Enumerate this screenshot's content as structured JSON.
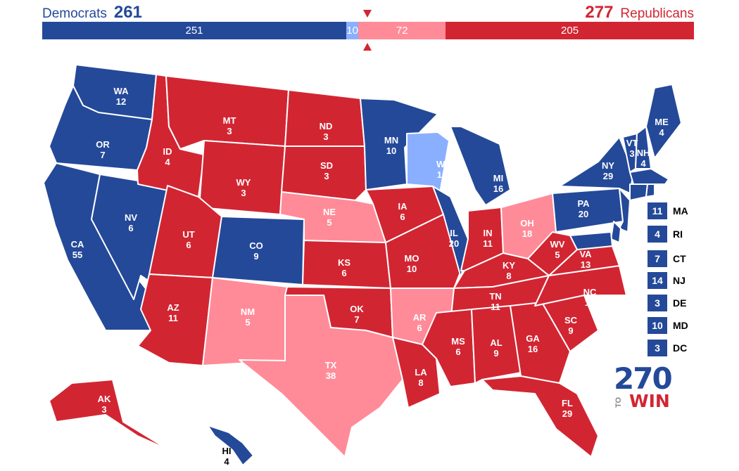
{
  "colors": {
    "safe_d": "#244999",
    "lean_d": "#8aafff",
    "lean_r": "#ff8b98",
    "safe_r": "#d22532"
  },
  "header": {
    "dem_label": "Democrats",
    "dem_total": "261",
    "rep_label": "Republicans",
    "rep_total": "277"
  },
  "bar": {
    "total_votes": 538,
    "segments": [
      {
        "rating": "safe_d",
        "label": "251",
        "votes": 251
      },
      {
        "rating": "lean_d",
        "label": "10",
        "votes": 10
      },
      {
        "rating": "lean_r",
        "label": "72",
        "votes": 72
      },
      {
        "rating": "safe_r",
        "label": "205",
        "votes": 205
      }
    ]
  },
  "states": [
    {
      "abbr": "WA",
      "ev": "12",
      "rating": "safe_d"
    },
    {
      "abbr": "OR",
      "ev": "7",
      "rating": "safe_d"
    },
    {
      "abbr": "CA",
      "ev": "55",
      "rating": "safe_d"
    },
    {
      "abbr": "NV",
      "ev": "6",
      "rating": "safe_d"
    },
    {
      "abbr": "ID",
      "ev": "4",
      "rating": "safe_r"
    },
    {
      "abbr": "MT",
      "ev": "3",
      "rating": "safe_r"
    },
    {
      "abbr": "WY",
      "ev": "3",
      "rating": "safe_r"
    },
    {
      "abbr": "UT",
      "ev": "6",
      "rating": "safe_r"
    },
    {
      "abbr": "AZ",
      "ev": "11",
      "rating": "safe_r"
    },
    {
      "abbr": "CO",
      "ev": "9",
      "rating": "safe_d"
    },
    {
      "abbr": "NM",
      "ev": "5",
      "rating": "lean_r"
    },
    {
      "abbr": "ND",
      "ev": "3",
      "rating": "safe_r"
    },
    {
      "abbr": "SD",
      "ev": "3",
      "rating": "safe_r"
    },
    {
      "abbr": "NE",
      "ev": "5",
      "rating": "lean_r"
    },
    {
      "abbr": "KS",
      "ev": "6",
      "rating": "safe_r"
    },
    {
      "abbr": "OK",
      "ev": "7",
      "rating": "safe_r"
    },
    {
      "abbr": "TX",
      "ev": "38",
      "rating": "lean_r"
    },
    {
      "abbr": "MN",
      "ev": "10",
      "rating": "safe_d"
    },
    {
      "abbr": "IA",
      "ev": "6",
      "rating": "safe_r"
    },
    {
      "abbr": "MO",
      "ev": "10",
      "rating": "safe_r"
    },
    {
      "abbr": "AR",
      "ev": "6",
      "rating": "lean_r"
    },
    {
      "abbr": "LA",
      "ev": "8",
      "rating": "safe_r"
    },
    {
      "abbr": "WI",
      "ev": "10",
      "rating": "lean_d"
    },
    {
      "abbr": "IL",
      "ev": "20",
      "rating": "safe_d"
    },
    {
      "abbr": "MI",
      "ev": "16",
      "rating": "safe_d"
    },
    {
      "abbr": "IN",
      "ev": "11",
      "rating": "safe_r"
    },
    {
      "abbr": "OH",
      "ev": "18",
      "rating": "lean_r"
    },
    {
      "abbr": "KY",
      "ev": "8",
      "rating": "safe_r"
    },
    {
      "abbr": "TN",
      "ev": "11",
      "rating": "safe_r"
    },
    {
      "abbr": "MS",
      "ev": "6",
      "rating": "safe_r"
    },
    {
      "abbr": "AL",
      "ev": "9",
      "rating": "safe_r"
    },
    {
      "abbr": "GA",
      "ev": "16",
      "rating": "safe_r"
    },
    {
      "abbr": "FL",
      "ev": "29",
      "rating": "safe_r"
    },
    {
      "abbr": "SC",
      "ev": "9",
      "rating": "safe_r"
    },
    {
      "abbr": "NC",
      "ev": "15",
      "rating": "safe_r"
    },
    {
      "abbr": "VA",
      "ev": "13",
      "rating": "safe_r"
    },
    {
      "abbr": "WV",
      "ev": "5",
      "rating": "safe_r"
    },
    {
      "abbr": "PA",
      "ev": "20",
      "rating": "safe_d"
    },
    {
      "abbr": "NY",
      "ev": "29",
      "rating": "safe_d"
    },
    {
      "abbr": "VT",
      "ev": "3",
      "rating": "safe_d"
    },
    {
      "abbr": "NH",
      "ev": "4",
      "rating": "safe_d"
    },
    {
      "abbr": "ME",
      "ev": "4",
      "rating": "safe_d"
    },
    {
      "abbr": "AK",
      "ev": "3",
      "rating": "safe_r"
    },
    {
      "abbr": "HI",
      "ev": "4",
      "rating": "safe_d"
    }
  ],
  "small_states": [
    {
      "abbr": "MA",
      "ev": "11",
      "rating": "safe_d"
    },
    {
      "abbr": "RI",
      "ev": "4",
      "rating": "safe_d"
    },
    {
      "abbr": "CT",
      "ev": "7",
      "rating": "safe_d"
    },
    {
      "abbr": "NJ",
      "ev": "14",
      "rating": "safe_d"
    },
    {
      "abbr": "DE",
      "ev": "3",
      "rating": "safe_d"
    },
    {
      "abbr": "MD",
      "ev": "10",
      "rating": "safe_d"
    },
    {
      "abbr": "DC",
      "ev": "3",
      "rating": "safe_d"
    }
  ],
  "logo": {
    "number": "270",
    "to": "TO",
    "win": "WIN"
  }
}
